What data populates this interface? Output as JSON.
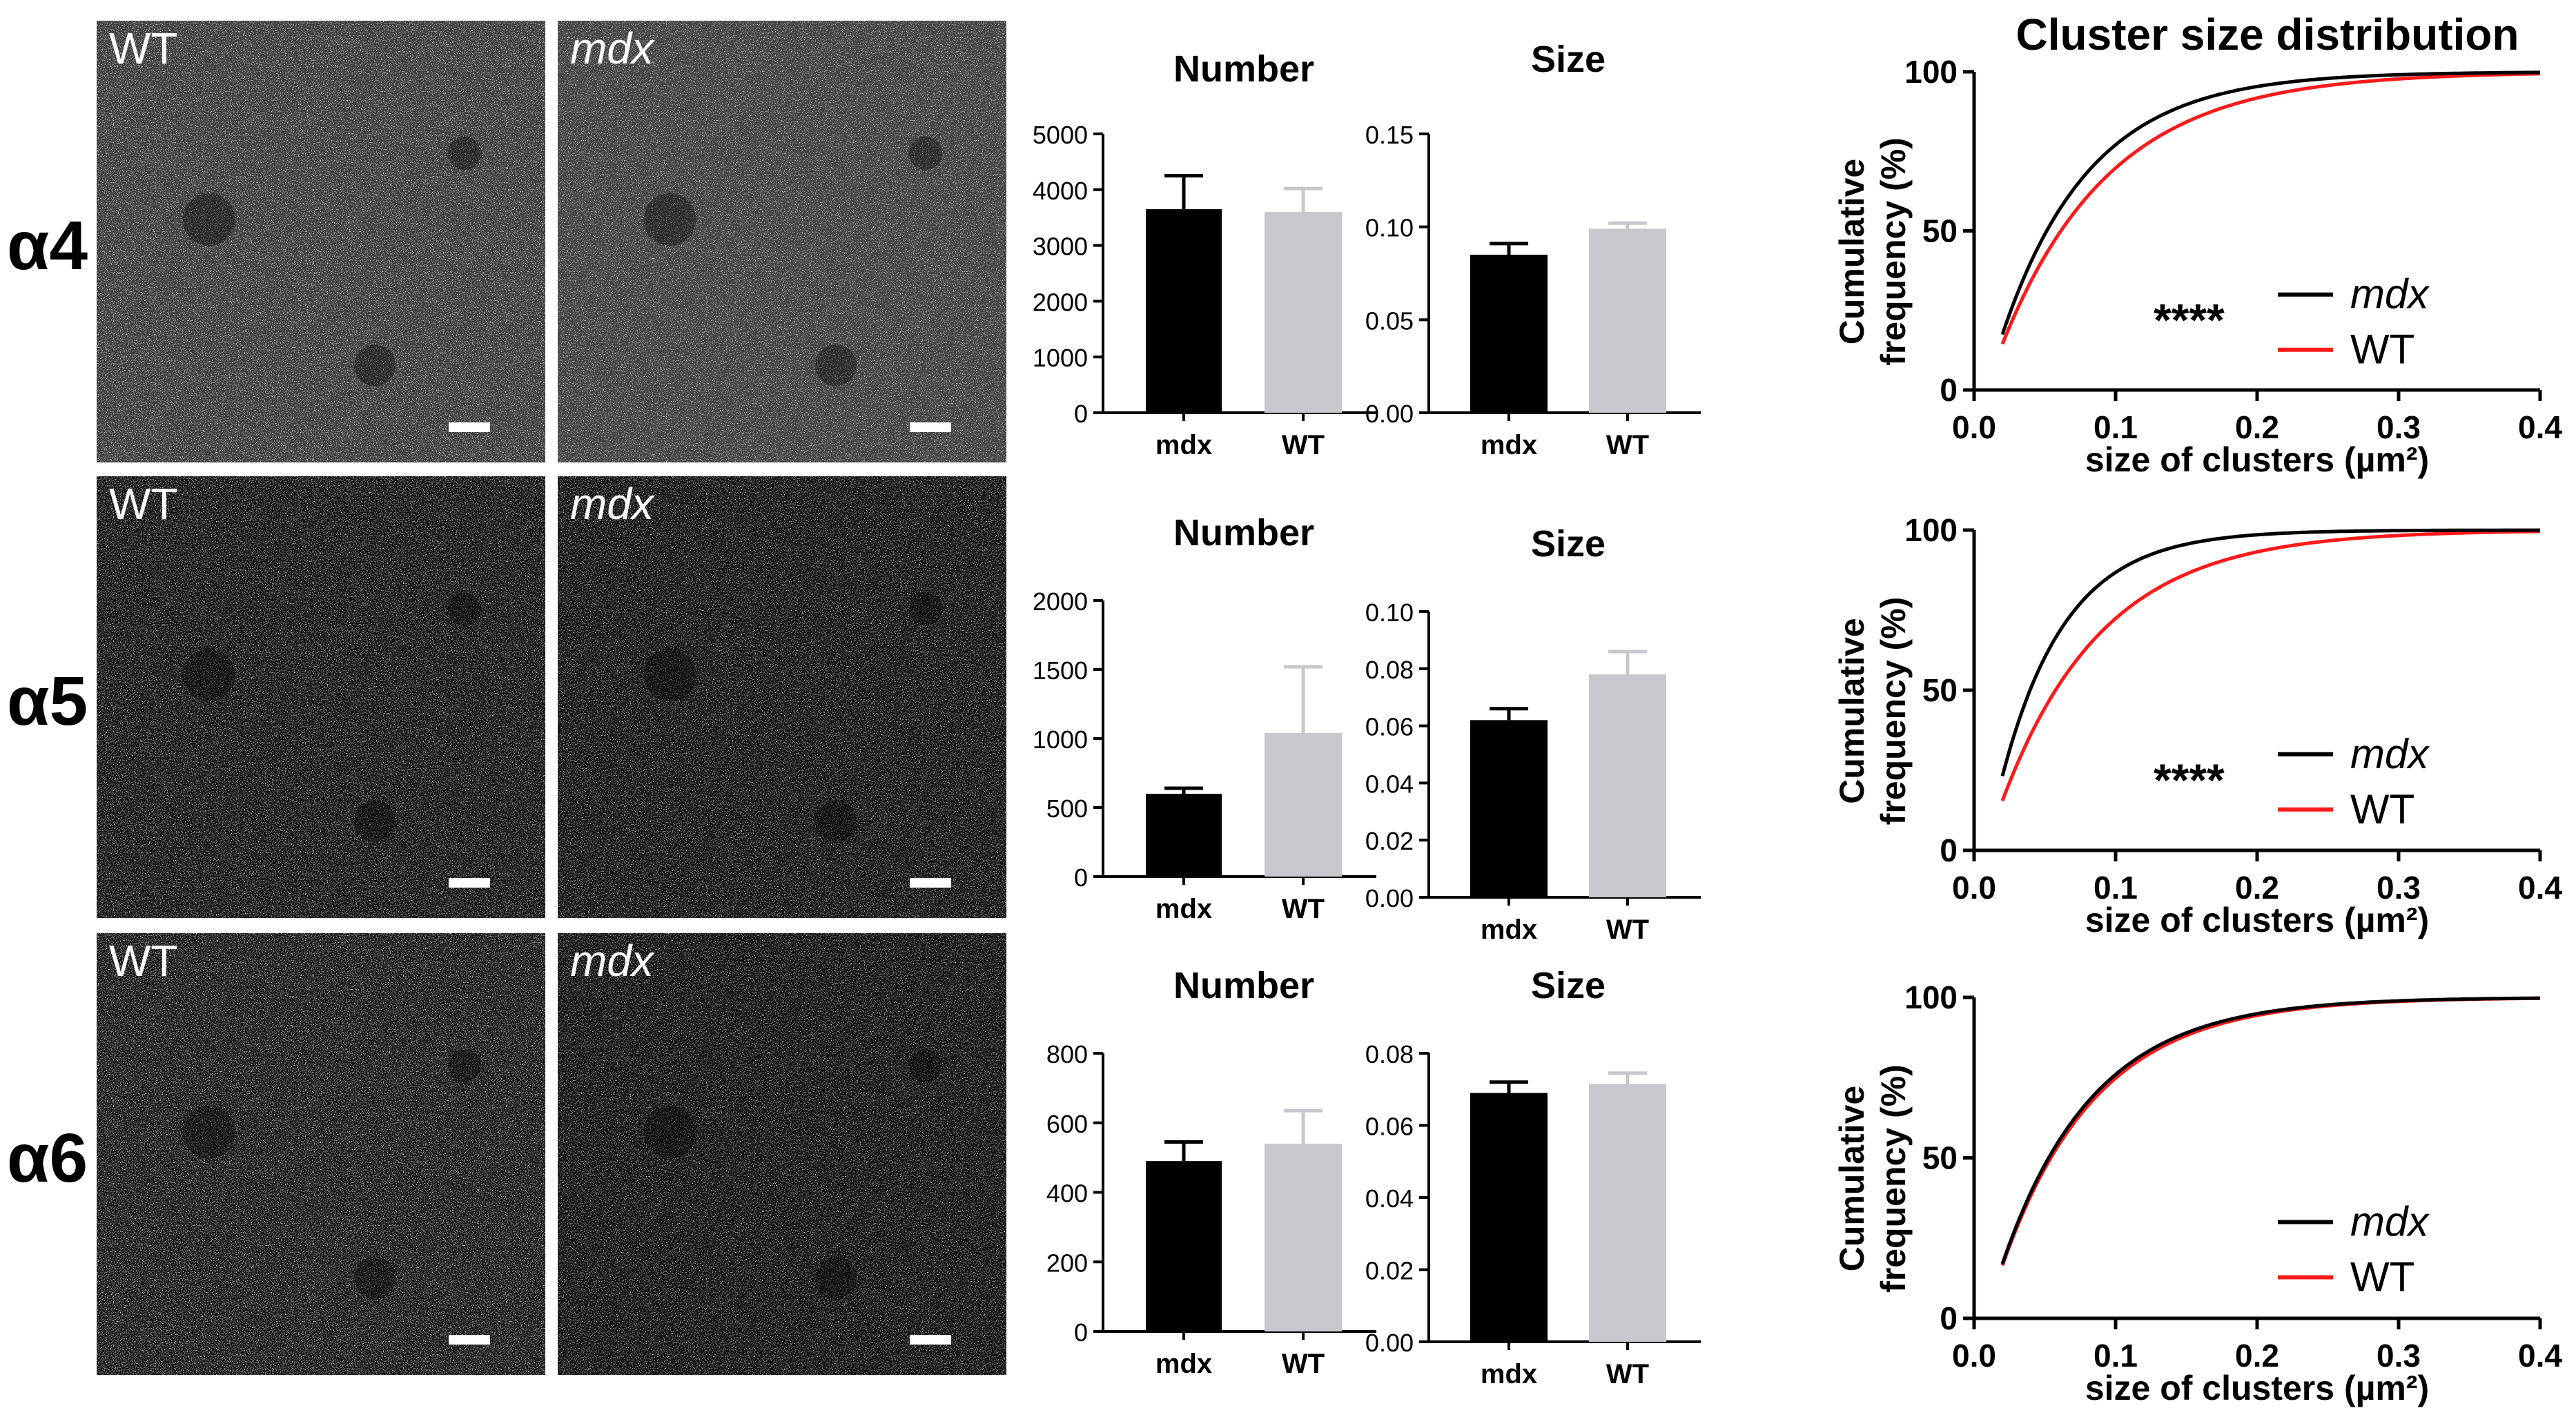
{
  "rows": [
    {
      "label": "α4",
      "micrographs": [
        {
          "label": "WT",
          "italic": false
        },
        {
          "label": "mdx",
          "italic": true
        }
      ],
      "bar_number": {
        "title": "Number",
        "ylim": [
          0,
          5000
        ],
        "ticks": [
          "0",
          "1000",
          "2000",
          "3000",
          "4000",
          "5000"
        ],
        "tick_values": [
          0,
          1000,
          2000,
          3000,
          4000,
          5000
        ],
        "categories": [
          "mdx",
          "WT"
        ],
        "values": [
          3650,
          3600
        ],
        "errors": [
          600,
          420
        ]
      },
      "bar_size": {
        "title": "Size",
        "ylim": [
          0,
          0.15
        ],
        "ticks": [
          "0.00",
          "0.05",
          "0.10",
          "0.15"
        ],
        "tick_values": [
          0,
          0.05,
          0.1,
          0.15
        ],
        "categories": [
          "mdx",
          "WT"
        ],
        "values": [
          0.085,
          0.099
        ],
        "errors": [
          0.006,
          0.003
        ]
      },
      "cdf": {
        "title": "Cluster size distribution",
        "significance": "****",
        "legend": [
          "mdx",
          "WT"
        ],
        "mdx_k": 16.0,
        "wt_k": 13.0
      }
    },
    {
      "label": "α5",
      "micrographs": [
        {
          "label": "WT",
          "italic": false
        },
        {
          "label": "mdx",
          "italic": true
        }
      ],
      "bar_number": {
        "title": "Number",
        "ylim": [
          0,
          2000
        ],
        "ticks": [
          "0",
          "500",
          "1000",
          "1500",
          "2000"
        ],
        "tick_values": [
          0,
          500,
          1000,
          1500,
          2000
        ],
        "categories": [
          "mdx",
          "WT"
        ],
        "values": [
          600,
          1040
        ],
        "errors": [
          40,
          480
        ]
      },
      "bar_size": {
        "title": "Size",
        "ylim": [
          0,
          0.1
        ],
        "ticks": [
          "0.00",
          "0.02",
          "0.04",
          "0.06",
          "0.08",
          "0.10"
        ],
        "tick_values": [
          0,
          0.02,
          0.04,
          0.06,
          0.08,
          0.1
        ],
        "categories": [
          "mdx",
          "WT"
        ],
        "values": [
          0.062,
          0.078
        ],
        "errors": [
          0.004,
          0.008
        ]
      },
      "cdf": {
        "title": "",
        "significance": "****",
        "legend": [
          "mdx",
          "WT"
        ],
        "mdx_k": 22.0,
        "wt_k": 14.0
      }
    },
    {
      "label": "α6",
      "micrographs": [
        {
          "label": "WT",
          "italic": false
        },
        {
          "label": "mdx",
          "italic": true
        }
      ],
      "bar_number": {
        "title": "Number",
        "ylim": [
          0,
          800
        ],
        "ticks": [
          "0",
          "200",
          "400",
          "600",
          "800"
        ],
        "tick_values": [
          0,
          200,
          400,
          600,
          800
        ],
        "categories": [
          "mdx",
          "WT"
        ],
        "values": [
          490,
          540
        ],
        "errors": [
          55,
          95
        ]
      },
      "bar_size": {
        "title": "Size",
        "ylim": [
          0,
          0.08
        ],
        "ticks": [
          "0.00",
          "0.02",
          "0.04",
          "0.06",
          "0.08"
        ],
        "tick_values": [
          0,
          0.02,
          0.04,
          0.06,
          0.08
        ],
        "categories": [
          "mdx",
          "WT"
        ],
        "values": [
          0.069,
          0.0715
        ],
        "errors": [
          0.003,
          0.003
        ]
      },
      "cdf": {
        "title": "",
        "significance": "",
        "legend": [
          "mdx",
          "WT"
        ],
        "mdx_k": 15.5,
        "wt_k": 15.0
      }
    }
  ],
  "cdf_axes": {
    "xlabel": "size of clusters (µm²)",
    "ylabel_line1": "Cumulative",
    "ylabel_line2": "frequency (%)",
    "xticks": [
      "0.0",
      "0.1",
      "0.2",
      "0.3",
      "0.4"
    ],
    "xtick_values": [
      0,
      0.1,
      0.2,
      0.3,
      0.4
    ],
    "yticks": [
      "0",
      "50",
      "100"
    ],
    "ytick_values": [
      0,
      50,
      100
    ],
    "xlim": [
      0,
      0.4
    ],
    "ylim": [
      0,
      100
    ]
  },
  "colors": {
    "mdx": "#000000",
    "wt_bar": "#c8c8cc",
    "wt_line": "#ff1a1a",
    "axis": "#000000"
  },
  "chart_data": [
    {
      "type": "bar",
      "title": "Number",
      "group": "α4",
      "categories": [
        "mdx",
        "WT"
      ],
      "values": [
        3650,
        3600
      ],
      "errors": [
        600,
        420
      ],
      "ylim": [
        0,
        5000
      ]
    },
    {
      "type": "bar",
      "title": "Size",
      "group": "α4",
      "categories": [
        "mdx",
        "WT"
      ],
      "values": [
        0.085,
        0.099
      ],
      "errors": [
        0.006,
        0.003
      ],
      "ylim": [
        0,
        0.15
      ]
    },
    {
      "type": "line",
      "title": "Cluster size distribution",
      "group": "α4",
      "xlabel": "size of clusters (µm²)",
      "ylabel": "Cumulative frequency (%)",
      "xlim": [
        0,
        0.4
      ],
      "ylim": [
        0,
        100
      ],
      "series": [
        {
          "name": "mdx",
          "x": [
            0.02,
            0.05,
            0.1,
            0.2,
            0.3,
            0.4
          ],
          "y": [
            18,
            55,
            80,
            96,
            99,
            100
          ]
        },
        {
          "name": "WT",
          "x": [
            0.02,
            0.05,
            0.1,
            0.2,
            0.3,
            0.4
          ],
          "y": [
            16,
            48,
            73,
            93,
            98,
            99.5
          ]
        }
      ]
    },
    {
      "type": "bar",
      "title": "Number",
      "group": "α5",
      "categories": [
        "mdx",
        "WT"
      ],
      "values": [
        600,
        1040
      ],
      "errors": [
        40,
        480
      ],
      "ylim": [
        0,
        2000
      ]
    },
    {
      "type": "bar",
      "title": "Size",
      "group": "α5",
      "categories": [
        "mdx",
        "WT"
      ],
      "values": [
        0.062,
        0.078
      ],
      "errors": [
        0.004,
        0.008
      ],
      "ylim": [
        0,
        0.1
      ]
    },
    {
      "type": "line",
      "group": "α5",
      "xlabel": "size of clusters (µm²)",
      "ylabel": "Cumulative frequency (%)",
      "xlim": [
        0,
        0.4
      ],
      "ylim": [
        0,
        100
      ],
      "series": [
        {
          "name": "mdx",
          "x": [
            0.02,
            0.05,
            0.1,
            0.2,
            0.3,
            0.4
          ],
          "y": [
            24,
            66,
            89,
            99,
            100,
            100
          ]
        },
        {
          "name": "WT",
          "x": [
            0.02,
            0.05,
            0.1,
            0.2,
            0.3,
            0.4
          ],
          "y": [
            18,
            50,
            76,
            94,
            98,
            99.5
          ]
        }
      ]
    },
    {
      "type": "bar",
      "title": "Number",
      "group": "α6",
      "categories": [
        "mdx",
        "WT"
      ],
      "values": [
        490,
        540
      ],
      "errors": [
        55,
        95
      ],
      "ylim": [
        0,
        800
      ]
    },
    {
      "type": "bar",
      "title": "Size",
      "group": "α6",
      "categories": [
        "mdx",
        "WT"
      ],
      "values": [
        0.069,
        0.0715
      ],
      "errors": [
        0.003,
        0.003
      ],
      "ylim": [
        0,
        0.08
      ]
    },
    {
      "type": "line",
      "group": "α6",
      "xlabel": "size of clusters (µm²)",
      "ylabel": "Cumulative frequency (%)",
      "xlim": [
        0,
        0.4
      ],
      "ylim": [
        0,
        100
      ],
      "series": [
        {
          "name": "mdx",
          "x": [
            0.02,
            0.05,
            0.1,
            0.2,
            0.3,
            0.4
          ],
          "y": [
            17,
            54,
            79,
            95,
            99,
            100
          ]
        },
        {
          "name": "WT",
          "x": [
            0.02,
            0.05,
            0.1,
            0.2,
            0.3,
            0.4
          ],
          "y": [
            17,
            53,
            78,
            95,
            99,
            100
          ]
        }
      ]
    }
  ]
}
